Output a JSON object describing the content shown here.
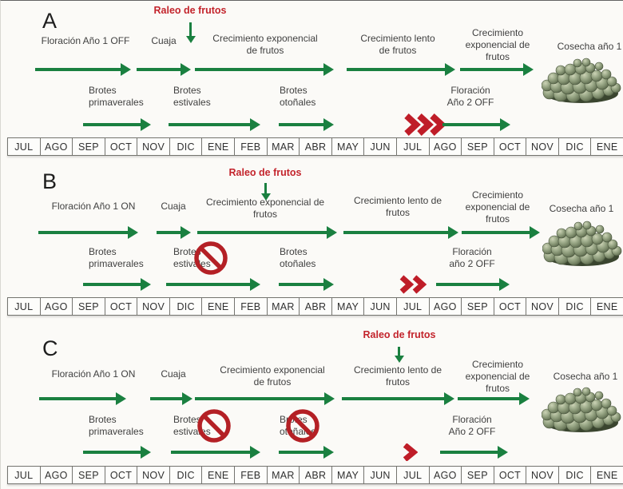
{
  "months": [
    "JUL",
    "AGO",
    "SEP",
    "OCT",
    "NOV",
    "DIC",
    "ENE",
    "FEB",
    "MAR",
    "ABR",
    "MAY",
    "JUN",
    "JUL",
    "AGO",
    "SEP",
    "OCT",
    "NOV",
    "DIC",
    "ENE"
  ],
  "colors": {
    "arrow_green": "#1a8040",
    "accent_red": "#c3242c",
    "ban_red": "#b42025",
    "text_gray": "#404040"
  },
  "panels": [
    {
      "label": "A",
      "raleo": "Raleo de frutos",
      "floracion1": "Floración Año 1 OFF",
      "cuaja": "Cuaja",
      "growth_exp": [
        "Crecimiento exponencial",
        "de frutos"
      ],
      "growth_slow": [
        "Crecimiento lento",
        "de frutos"
      ],
      "growth_exp2": [
        "Crecimiento",
        "exponencial de",
        "frutos"
      ],
      "harvest": "Cosecha año 1",
      "shoots_spring": [
        "Brotes",
        "primaverales"
      ],
      "shoots_summer": [
        "Brotes",
        "estivales"
      ],
      "shoots_autumn": [
        "Brotes",
        "otoñales"
      ],
      "floracion2": [
        "Floración",
        "Año 2 OFF"
      ],
      "chevron_count": 3,
      "banned_shoots": []
    },
    {
      "label": "B",
      "raleo": "Raleo de frutos",
      "floracion1": "Floración Año 1 ON",
      "cuaja": "Cuaja",
      "growth_exp": [
        "Crecimiento exponencial de",
        "frutos"
      ],
      "growth_slow": [
        "Crecimiento lento de",
        "frutos"
      ],
      "growth_exp2": [
        "Crecimiento",
        "exponencial de",
        "frutos"
      ],
      "harvest": "Cosecha año 1",
      "shoots_spring": [
        "Brotes",
        "primaverales"
      ],
      "shoots_summer": [
        "Brotes",
        "estivales"
      ],
      "shoots_autumn": [
        "Brotes",
        "otoñales"
      ],
      "floracion2": [
        "Floración",
        "año 2 OFF"
      ],
      "chevron_count": 2,
      "banned_shoots": [
        "shoots_summer"
      ]
    },
    {
      "label": "C",
      "raleo": "Raleo de frutos",
      "floracion1": "Floración Año 1 ON",
      "cuaja": "Cuaja",
      "growth_exp": [
        "Crecimiento exponencial",
        "de frutos"
      ],
      "growth_slow": [
        "Crecimiento lento de",
        "frutos"
      ],
      "growth_exp2": [
        "Crecimiento",
        "exponencial de",
        "frutos"
      ],
      "harvest": "Cosecha año 1",
      "shoots_spring": [
        "Brotes",
        "primaverales"
      ],
      "shoots_summer": [
        "Brotes",
        "estivales"
      ],
      "shoots_autumn": [
        "Brotes",
        "otoñales"
      ],
      "floracion2": [
        "Floración",
        "Año 2 OFF"
      ],
      "chevron_count": 1,
      "banned_shoots": [
        "shoots_summer",
        "shoots_autumn"
      ]
    }
  ]
}
